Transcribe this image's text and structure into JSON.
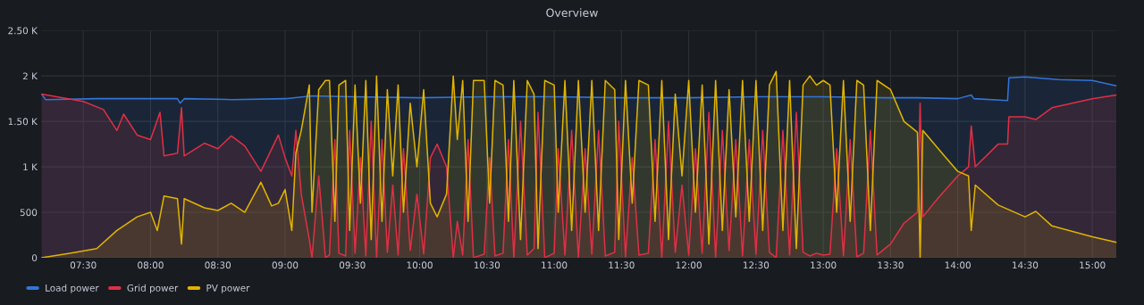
{
  "chart_data": {
    "type": "area",
    "title": "Overview",
    "xlim": [
      7.187,
      15.18
    ],
    "ylim": [
      0,
      2500
    ],
    "xticks": [
      {
        "value": 7.5,
        "label": "07:30"
      },
      {
        "value": 8.0,
        "label": "08:00"
      },
      {
        "value": 8.5,
        "label": "08:30"
      },
      {
        "value": 9.0,
        "label": "09:00"
      },
      {
        "value": 9.5,
        "label": "09:30"
      },
      {
        "value": 10.0,
        "label": "10:00"
      },
      {
        "value": 10.5,
        "label": "10:30"
      },
      {
        "value": 11.0,
        "label": "11:00"
      },
      {
        "value": 11.5,
        "label": "11:30"
      },
      {
        "value": 12.0,
        "label": "12:00"
      },
      {
        "value": 12.5,
        "label": "12:30"
      },
      {
        "value": 13.0,
        "label": "13:00"
      },
      {
        "value": 13.5,
        "label": "13:30"
      },
      {
        "value": 14.0,
        "label": "14:00"
      },
      {
        "value": 14.5,
        "label": "14:30"
      },
      {
        "value": 15.0,
        "label": "15:00"
      }
    ],
    "yticks": [
      0,
      500,
      {
        "value": 1000,
        "label": "1 K"
      },
      {
        "value": 1500,
        "label": "1.50 K"
      },
      {
        "value": 2000,
        "label": "2 K"
      },
      {
        "value": 2500,
        "label": "2.50 K"
      }
    ],
    "grid": true,
    "legend": "bottom",
    "marker": "none",
    "line_style": "solid",
    "series": [
      {
        "name": "Load power",
        "color": "#3274d9",
        "x": [
          7.19,
          7.22,
          7.6,
          8.0,
          8.2,
          8.22,
          8.25,
          8.6,
          9.0,
          9.2,
          9.5,
          10.0,
          10.5,
          11.0,
          11.5,
          12.0,
          12.5,
          13.0,
          13.45,
          13.7,
          14.0,
          14.1,
          14.12,
          14.37,
          14.38,
          14.5,
          14.75,
          15.0,
          15.18
        ],
        "values": [
          1800,
          1740,
          1750,
          1750,
          1750,
          1700,
          1750,
          1740,
          1750,
          1780,
          1770,
          1760,
          1770,
          1770,
          1760,
          1760,
          1770,
          1770,
          1760,
          1760,
          1750,
          1790,
          1750,
          1730,
          1980,
          1990,
          1960,
          1950,
          1890
        ]
      },
      {
        "name": "Grid power",
        "color": "#e02f44",
        "x": [
          7.19,
          7.5,
          7.65,
          7.75,
          7.8,
          7.9,
          8.0,
          8.07,
          8.1,
          8.2,
          8.23,
          8.25,
          8.4,
          8.5,
          8.6,
          8.7,
          8.82,
          8.95,
          9.0,
          9.05,
          9.08,
          9.12,
          9.18,
          9.2,
          9.25,
          9.3,
          9.33,
          9.37,
          9.4,
          9.45,
          9.48,
          9.52,
          9.56,
          9.6,
          9.64,
          9.68,
          9.72,
          9.76,
          9.8,
          9.84,
          9.88,
          9.93,
          9.98,
          10.03,
          10.08,
          10.13,
          10.2,
          10.25,
          10.28,
          10.32,
          10.36,
          10.4,
          10.48,
          10.52,
          10.56,
          10.62,
          10.66,
          10.7,
          10.75,
          10.8,
          10.85,
          10.88,
          10.93,
          11.0,
          11.03,
          11.08,
          11.13,
          11.18,
          11.23,
          11.28,
          11.33,
          11.38,
          11.45,
          11.48,
          11.53,
          11.58,
          11.63,
          11.7,
          11.75,
          11.8,
          11.85,
          11.9,
          11.95,
          12.0,
          12.05,
          12.1,
          12.15,
          12.2,
          12.25,
          12.3,
          12.35,
          12.4,
          12.45,
          12.5,
          12.55,
          12.6,
          12.65,
          12.7,
          12.75,
          12.8,
          12.85,
          12.9,
          12.95,
          13.0,
          13.05,
          13.1,
          13.15,
          13.2,
          13.25,
          13.3,
          13.35,
          13.4,
          13.5,
          13.6,
          13.7,
          13.72,
          13.74,
          13.85,
          14.0,
          14.08,
          14.1,
          14.13,
          14.3,
          14.37,
          14.38,
          14.5,
          14.58,
          14.7,
          15.0,
          15.18
        ],
        "values": [
          1800,
          1720,
          1630,
          1400,
          1580,
          1350,
          1300,
          1600,
          1120,
          1150,
          1650,
          1120,
          1260,
          1200,
          1340,
          1230,
          950,
          1350,
          1100,
          900,
          1400,
          700,
          200,
          0,
          900,
          0,
          30,
          1300,
          50,
          20,
          1400,
          50,
          1100,
          20,
          1500,
          0,
          1300,
          60,
          800,
          30,
          1200,
          80,
          700,
          40,
          1100,
          1250,
          1000,
          0,
          400,
          30,
          1300,
          0,
          40,
          1100,
          20,
          50,
          1300,
          0,
          1500,
          30,
          100,
          1600,
          0,
          50,
          1200,
          30,
          1400,
          0,
          1200,
          40,
          1400,
          20,
          60,
          1500,
          10,
          1100,
          30,
          50,
          1300,
          0,
          1500,
          60,
          800,
          30,
          1200,
          50,
          1600,
          0,
          1400,
          80,
          1300,
          20,
          1300,
          40,
          1400,
          60,
          0,
          1400,
          30,
          1600,
          60,
          20,
          50,
          30,
          40,
          1200,
          20,
          1300,
          10,
          50,
          1400,
          30,
          150,
          380,
          500,
          1700,
          450,
          650,
          900,
          1000,
          1450,
          1000,
          1250,
          1250,
          1550,
          1550,
          1520,
          1650,
          1750,
          1790
        ]
      },
      {
        "name": "PV power",
        "color": "#e0b400",
        "x": [
          7.19,
          7.4,
          7.6,
          7.75,
          7.9,
          8.0,
          8.05,
          8.1,
          8.2,
          8.23,
          8.25,
          8.4,
          8.5,
          8.6,
          8.7,
          8.82,
          8.9,
          8.95,
          9.0,
          9.05,
          9.08,
          9.12,
          9.18,
          9.2,
          9.25,
          9.3,
          9.33,
          9.37,
          9.4,
          9.45,
          9.48,
          9.52,
          9.56,
          9.6,
          9.64,
          9.68,
          9.72,
          9.76,
          9.8,
          9.84,
          9.88,
          9.93,
          9.98,
          10.03,
          10.08,
          10.13,
          10.2,
          10.25,
          10.28,
          10.32,
          10.36,
          10.4,
          10.48,
          10.52,
          10.56,
          10.62,
          10.66,
          10.7,
          10.75,
          10.8,
          10.85,
          10.88,
          10.93,
          11.0,
          11.03,
          11.08,
          11.13,
          11.18,
          11.23,
          11.28,
          11.33,
          11.38,
          11.45,
          11.48,
          11.53,
          11.58,
          11.63,
          11.7,
          11.75,
          11.8,
          11.85,
          11.9,
          11.95,
          12.0,
          12.05,
          12.1,
          12.15,
          12.2,
          12.25,
          12.3,
          12.35,
          12.4,
          12.45,
          12.5,
          12.55,
          12.6,
          12.65,
          12.7,
          12.75,
          12.8,
          12.85,
          12.9,
          12.95,
          13.0,
          13.05,
          13.1,
          13.15,
          13.2,
          13.25,
          13.3,
          13.35,
          13.4,
          13.5,
          13.6,
          13.7,
          13.72,
          13.74,
          13.9,
          14.0,
          14.08,
          14.1,
          14.13,
          14.3,
          14.5,
          14.58,
          14.7,
          15.0,
          15.18
        ],
        "values": [
          0,
          50,
          100,
          300,
          450,
          500,
          300,
          680,
          650,
          150,
          650,
          550,
          520,
          600,
          500,
          830,
          570,
          600,
          750,
          300,
          1150,
          1400,
          1900,
          500,
          1850,
          1950,
          1950,
          400,
          1900,
          1950,
          300,
          1900,
          600,
          1950,
          200,
          2000,
          400,
          1850,
          900,
          1900,
          500,
          1700,
          1000,
          1850,
          600,
          450,
          700,
          2000,
          1300,
          1950,
          400,
          1950,
          1950,
          600,
          1950,
          1900,
          400,
          1950,
          200,
          1950,
          1800,
          100,
          1950,
          1900,
          500,
          1950,
          300,
          1950,
          500,
          1950,
          300,
          1950,
          1850,
          200,
          1950,
          600,
          1950,
          1900,
          400,
          1950,
          200,
          1800,
          900,
          1950,
          500,
          1900,
          150,
          1950,
          300,
          1850,
          450,
          1950,
          400,
          1950,
          300,
          1900,
          2050,
          300,
          1950,
          100,
          1900,
          2000,
          1900,
          1950,
          1900,
          500,
          1950,
          400,
          1950,
          1900,
          300,
          1950,
          1850,
          1500,
          1380,
          0,
          1400,
          1120,
          950,
          900,
          300,
          800,
          580,
          450,
          510,
          350,
          230,
          170
        ]
      }
    ]
  }
}
